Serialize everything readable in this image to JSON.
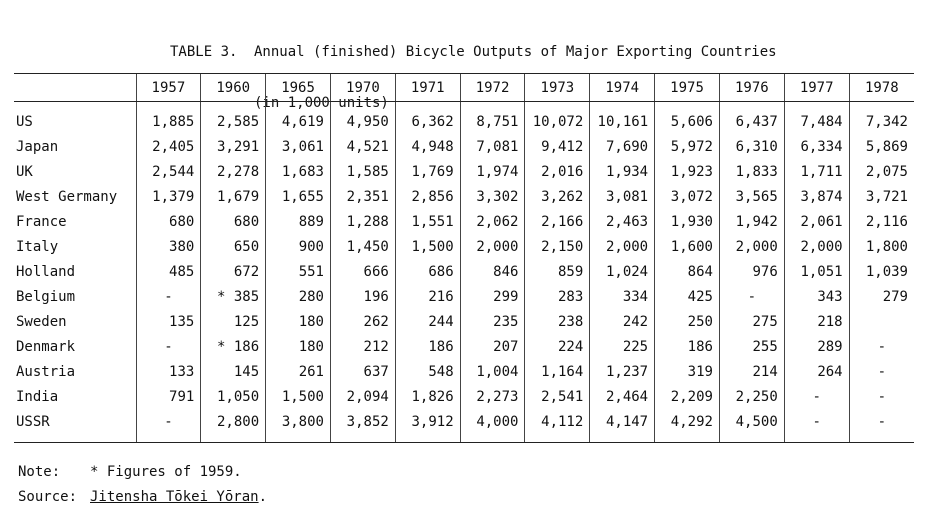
{
  "title": {
    "label": "TABLE 3.",
    "line1": "Annual (finished) Bicycle Outputs of Major Exporting Countries",
    "line2": "(in 1,000 units)"
  },
  "table": {
    "years": [
      "1957",
      "1960",
      "1965",
      "1970",
      "1971",
      "1972",
      "1973",
      "1974",
      "1975",
      "1976",
      "1977",
      "1978"
    ],
    "rows": [
      {
        "country": "US",
        "values": [
          "1,885",
          "2,585",
          "4,619",
          "4,950",
          "6,362",
          "8,751",
          "10,072",
          "10,161",
          "5,606",
          "6,437",
          "7,484",
          "7,342"
        ]
      },
      {
        "country": "Japan",
        "values": [
          "2,405",
          "3,291",
          "3,061",
          "4,521",
          "4,948",
          "7,081",
          "9,412",
          "7,690",
          "5,972",
          "6,310",
          "6,334",
          "5,869"
        ]
      },
      {
        "country": "UK",
        "values": [
          "2,544",
          "2,278",
          "1,683",
          "1,585",
          "1,769",
          "1,974",
          "2,016",
          "1,934",
          "1,923",
          "1,833",
          "1,711",
          "2,075"
        ]
      },
      {
        "country": "West Germany",
        "values": [
          "1,379",
          "1,679",
          "1,655",
          "2,351",
          "2,856",
          "3,302",
          "3,262",
          "3,081",
          "3,072",
          "3,565",
          "3,874",
          "3,721"
        ]
      },
      {
        "country": "France",
        "values": [
          "680",
          "680",
          "889",
          "1,288",
          "1,551",
          "2,062",
          "2,166",
          "2,463",
          "1,930",
          "1,942",
          "2,061",
          "2,116"
        ]
      },
      {
        "country": "Italy",
        "values": [
          "380",
          "650",
          "900",
          "1,450",
          "1,500",
          "2,000",
          "2,150",
          "2,000",
          "1,600",
          "2,000",
          "2,000",
          "1,800"
        ]
      },
      {
        "country": "Holland",
        "values": [
          "485",
          "672",
          "551",
          "666",
          "686",
          "846",
          "859",
          "1,024",
          "864",
          "976",
          "1,051",
          "1,039"
        ]
      },
      {
        "country": "Belgium",
        "values": [
          "-",
          "* 385",
          "280",
          "196",
          "216",
          "299",
          "283",
          "334",
          "425",
          "-",
          "343",
          "279"
        ]
      },
      {
        "country": "Sweden",
        "values": [
          "135",
          "125",
          "180",
          "262",
          "244",
          "235",
          "238",
          "242",
          "250",
          "275",
          "218",
          ""
        ]
      },
      {
        "country": "Denmark",
        "values": [
          "-",
          "* 186",
          "180",
          "212",
          "186",
          "207",
          "224",
          "225",
          "186",
          "255",
          "289",
          "-"
        ]
      },
      {
        "country": "Austria",
        "values": [
          "133",
          "145",
          "261",
          "637",
          "548",
          "1,004",
          "1,164",
          "1,237",
          "319",
          "214",
          "264",
          "-"
        ]
      },
      {
        "country": "India",
        "values": [
          "791",
          "1,050",
          "1,500",
          "2,094",
          "1,826",
          "2,273",
          "2,541",
          "2,464",
          "2,209",
          "2,250",
          "-",
          "-"
        ]
      },
      {
        "country": "USSR",
        "values": [
          "-",
          "2,800",
          "3,800",
          "3,852",
          "3,912",
          "4,000",
          "4,112",
          "4,147",
          "4,292",
          "4,500",
          "-",
          "-"
        ]
      }
    ]
  },
  "note": {
    "label": "Note:",
    "text": "* Figures of 1959."
  },
  "source": {
    "label": "Source:",
    "text": "Jitensha Tōkei Yōran",
    "trail": "."
  }
}
